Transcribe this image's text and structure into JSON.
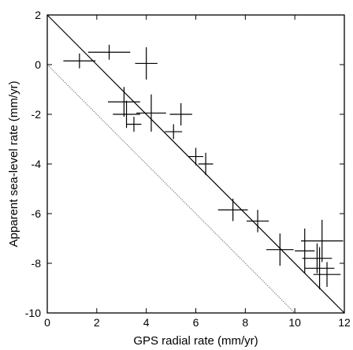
{
  "chart_data": {
    "type": "scatter",
    "title": "",
    "xlabel": "GPS radial rate (mm/yr)",
    "ylabel": "Apparent sea-level rate (mm/yr)",
    "xlim": [
      0,
      12
    ],
    "ylim": [
      -10,
      2
    ],
    "xticks": [
      "0",
      "2",
      "4",
      "6",
      "8",
      "10",
      "12"
    ],
    "yticks": [
      "-10",
      "-8",
      "-6",
      "-4",
      "-2",
      "0",
      "2"
    ],
    "grid": false,
    "points": [
      {
        "x": 1.3,
        "y": 0.15,
        "xerr": 0.65,
        "yerr": 0.3
      },
      {
        "x": 2.5,
        "y": 0.5,
        "xerr": 0.85,
        "yerr": 0.3
      },
      {
        "x": 4.0,
        "y": 0.05,
        "xerr": 0.45,
        "yerr": 0.65
      },
      {
        "x": 3.1,
        "y": -1.5,
        "xerr": 0.65,
        "yerr": 0.6
      },
      {
        "x": 3.2,
        "y": -2.0,
        "xerr": 0.55,
        "yerr": 0.55
      },
      {
        "x": 3.5,
        "y": -2.4,
        "xerr": 0.3,
        "yerr": 0.3
      },
      {
        "x": 4.2,
        "y": -1.95,
        "xerr": 0.6,
        "yerr": 0.75
      },
      {
        "x": 5.4,
        "y": -2.0,
        "xerr": 0.45,
        "yerr": 0.45
      },
      {
        "x": 5.1,
        "y": -2.7,
        "xerr": 0.35,
        "yerr": 0.3
      },
      {
        "x": 6.0,
        "y": -3.7,
        "xerr": 0.3,
        "yerr": 0.35
      },
      {
        "x": 6.4,
        "y": -4.0,
        "xerr": 0.3,
        "yerr": 0.45
      },
      {
        "x": 7.5,
        "y": -5.85,
        "xerr": 0.6,
        "yerr": 0.45
      },
      {
        "x": 8.5,
        "y": -6.3,
        "xerr": 0.45,
        "yerr": 0.45
      },
      {
        "x": 9.4,
        "y": -7.45,
        "xerr": 0.55,
        "yerr": 0.65
      },
      {
        "x": 10.4,
        "y": -7.5,
        "xerr": 0.4,
        "yerr": 0.9
      },
      {
        "x": 11.1,
        "y": -7.1,
        "xerr": 0.85,
        "yerr": 0.85
      },
      {
        "x": 10.9,
        "y": -7.8,
        "xerr": 0.6,
        "yerr": 0.6
      },
      {
        "x": 11.0,
        "y": -8.2,
        "xerr": 0.6,
        "yerr": 0.85
      },
      {
        "x": 11.3,
        "y": -8.45,
        "xerr": 0.55,
        "yerr": 0.5
      }
    ],
    "reference_lines": [
      {
        "style": "solid",
        "x": [
          0,
          12
        ],
        "y": [
          2,
          -10
        ]
      },
      {
        "style": "dotted",
        "x": [
          0,
          10
        ],
        "y": [
          0,
          -10
        ]
      }
    ]
  }
}
